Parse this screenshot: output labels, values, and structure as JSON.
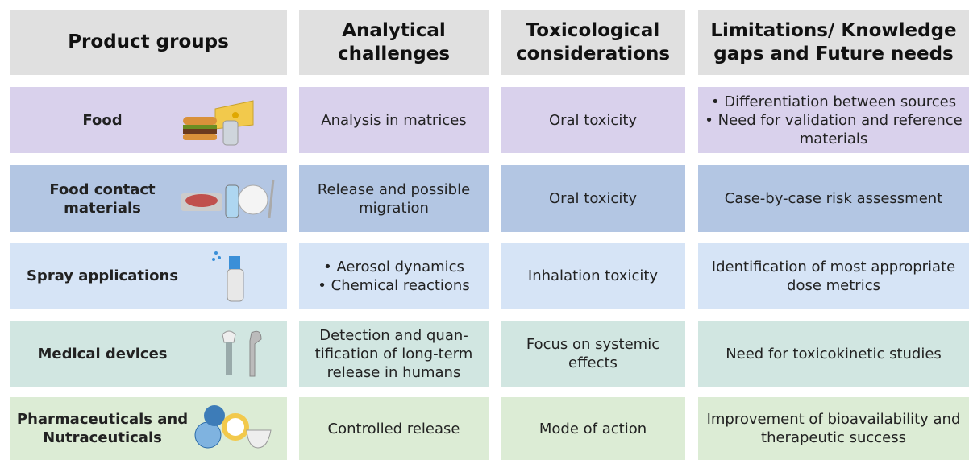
{
  "header": [
    "Product groups",
    [
      "Analytical",
      "challenges"
    ],
    [
      "Toxicological",
      "considerations"
    ],
    [
      "Limitations/ Knowledge",
      "gaps and Future needs"
    ]
  ],
  "rows": [
    {
      "group": [
        "Food"
      ],
      "analytical": [
        "Analysis in matrices"
      ],
      "toxicological": [
        "Oral toxicity"
      ],
      "limitations": [
        "• Differentiation between sources",
        "• Need for validation and reference",
        "materials"
      ]
    },
    {
      "group": [
        "Food contact",
        "materials"
      ],
      "analytical": [
        "Release and possible",
        "migration"
      ],
      "toxicological": [
        "Oral toxicity"
      ],
      "limitations": [
        "Case-by-case risk assessment"
      ]
    },
    {
      "group": [
        "Spray applications"
      ],
      "analytical": [
        "• Aerosol dynamics",
        "• Chemical reactions"
      ],
      "toxicological": [
        "Inhalation toxicity"
      ],
      "limitations": [
        "Identification of most appropriate",
        "dose metrics"
      ]
    },
    {
      "group": [
        "Medical devices"
      ],
      "analytical": [
        "Detection and quan-",
        "tification of long-term",
        "release in humans"
      ],
      "toxicological": [
        "Focus on systemic",
        "effects"
      ],
      "limitations": [
        "Need for toxicokinetic studies"
      ]
    },
    {
      "group": [
        "Pharmaceuticals and",
        "Nutraceuticals"
      ],
      "analytical": [
        "Controlled release"
      ],
      "toxicological": [
        "Mode of action"
      ],
      "limitations": [
        "Improvement of bioavailability and",
        "therapeutic success"
      ]
    }
  ]
}
